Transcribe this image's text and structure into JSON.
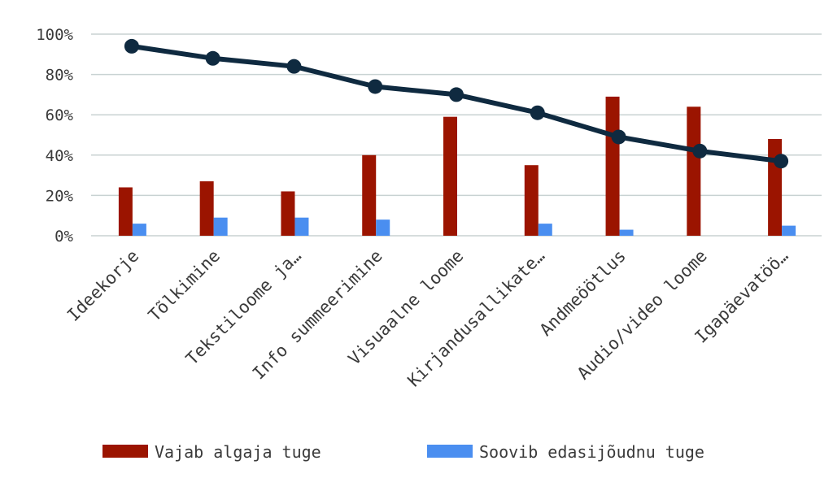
{
  "chart_data": {
    "type": "bar",
    "categories": [
      "Ideekorje",
      "Tõlkimine",
      "Tekstiloome ja…",
      "Info summeerimine",
      "Visuaalne loome",
      "Kirjandusallikate…",
      "Andmeöötlus",
      "Audio/video loome",
      "Igapäevatöö…"
    ],
    "series": [
      {
        "name": "Vajab algaja tuge",
        "type": "bar",
        "color": "#9b1400",
        "values": [
          24,
          27,
          22,
          40,
          59,
          35,
          69,
          64,
          48
        ]
      },
      {
        "name": "Soovib edasijõudnu tuge",
        "type": "bar",
        "color": "#4a8ef0",
        "values": [
          6,
          9,
          9,
          8,
          0,
          6,
          3,
          0,
          5
        ]
      },
      {
        "name": "",
        "type": "line",
        "color": "#0f2a40",
        "values": [
          94,
          88,
          84,
          74,
          70,
          61,
          49,
          42,
          37
        ]
      }
    ],
    "ylim": [
      0,
      100
    ],
    "yticks": [
      "0%",
      "20%",
      "40%",
      "60%",
      "80%",
      "100%"
    ],
    "ytick_values": [
      0,
      20,
      40,
      60,
      80,
      100
    ],
    "grid": true,
    "legend_position": "bottom"
  }
}
